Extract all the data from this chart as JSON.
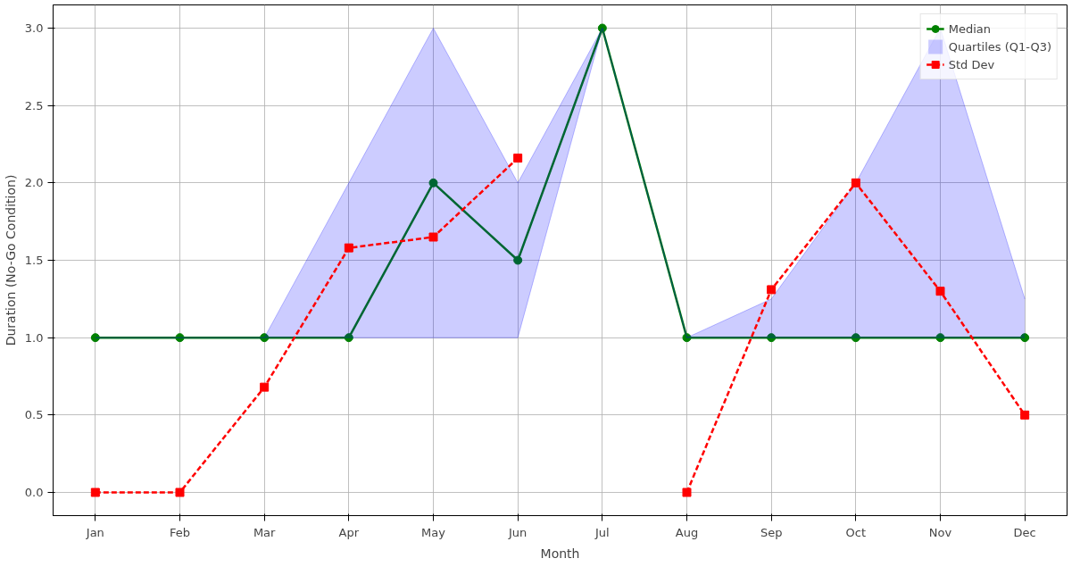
{
  "chart_data": {
    "type": "line",
    "xlabel": "Month",
    "ylabel": "Duration (No-Go Condition)",
    "categories": [
      "Jan",
      "Feb",
      "Mar",
      "Apr",
      "May",
      "Jun",
      "Jul",
      "Aug",
      "Sep",
      "Oct",
      "Nov",
      "Dec"
    ],
    "series": [
      {
        "name": "Median",
        "type": "line",
        "color": "#008000",
        "marker": "circle",
        "line_style": "solid",
        "values": [
          1,
          1,
          1,
          1,
          2,
          1.5,
          3,
          1,
          1,
          1,
          1,
          1
        ]
      },
      {
        "name": "Quartiles (Q1-Q3)",
        "type": "area",
        "color": "#0000ff",
        "values": [
          null,
          null,
          null,
          null,
          null,
          null,
          null,
          null,
          null,
          null,
          null,
          null
        ],
        "lower": [
          1,
          1,
          1,
          1,
          1,
          1,
          3,
          1,
          1,
          1,
          1,
          1
        ],
        "upper": [
          1,
          1,
          1,
          2,
          3,
          2,
          3,
          1,
          1.25,
          2,
          3,
          1.25
        ]
      },
      {
        "name": "Std Dev",
        "type": "line",
        "color": "#ff0000",
        "marker": "square",
        "line_style": "dashed",
        "values": [
          0,
          0,
          0.68,
          1.58,
          1.65,
          2.16,
          null,
          0,
          1.31,
          2,
          1.3,
          0.5
        ]
      }
    ],
    "ylim": [
      -0.15,
      3.15
    ],
    "yticks": [
      {
        "value": 0,
        "label": "0.0"
      },
      {
        "value": 0.5,
        "label": "0.5"
      },
      {
        "value": 1,
        "label": "1.0"
      },
      {
        "value": 1.5,
        "label": "1.5"
      },
      {
        "value": 2,
        "label": "2.0"
      },
      {
        "value": 2.5,
        "label": "2.5"
      },
      {
        "value": 3,
        "label": "3.0"
      }
    ],
    "grid": true,
    "legend": "top right"
  }
}
